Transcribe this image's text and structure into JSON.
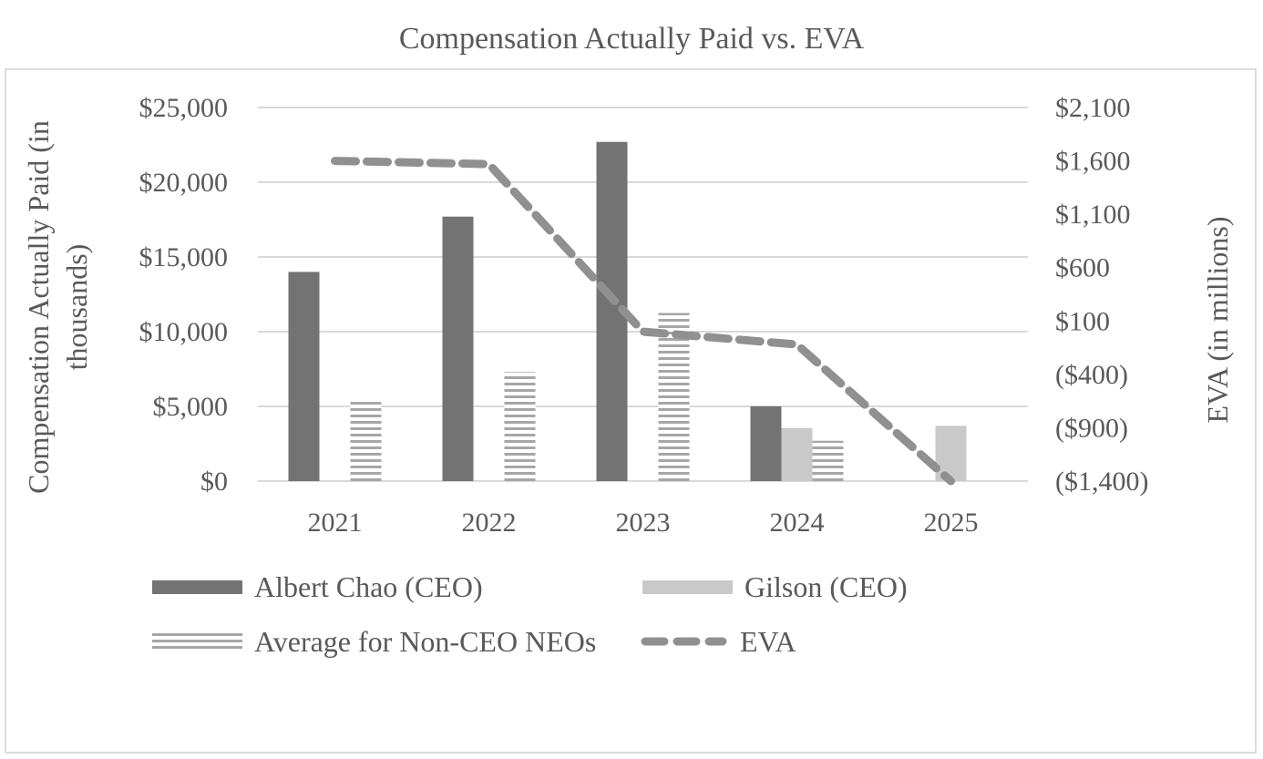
{
  "title": "Compensation Actually Paid vs. EVA",
  "chart_data": {
    "type": "bar",
    "subtype": "combo-bar-line-dual-axis",
    "categories": [
      "2021",
      "2022",
      "2023",
      "2024",
      "2025"
    ],
    "series": [
      {
        "name": "Albert Chao (CEO)",
        "type": "bar",
        "style": "solid-dark",
        "axis": "primary",
        "values": [
          14000,
          17700,
          22700,
          5000,
          null
        ]
      },
      {
        "name": "Gilson (CEO)",
        "type": "bar",
        "style": "solid-light",
        "axis": "primary",
        "values": [
          null,
          null,
          null,
          3550,
          3700
        ]
      },
      {
        "name": "Average for Non-CEO NEOs",
        "type": "bar",
        "style": "striped",
        "axis": "primary",
        "values": [
          5300,
          7300,
          11250,
          2700,
          null
        ]
      },
      {
        "name": "EVA",
        "type": "line",
        "style": "dashed",
        "axis": "secondary",
        "values": [
          1600,
          1570,
          0,
          -120,
          -1400
        ]
      }
    ],
    "left_axis": {
      "title": "Compensation Actually Paid (in thousands)",
      "title_lines": [
        "Compensation Actually Paid (in",
        "thousands)"
      ],
      "ticks": [
        "$25,000",
        "$20,000",
        "$15,000",
        "$10,000",
        "$5,000",
        "$0"
      ],
      "tick_values": [
        25000,
        20000,
        15000,
        10000,
        5000,
        0
      ],
      "min": 0,
      "max": 25000
    },
    "right_axis": {
      "title": "EVA (in millions)",
      "ticks": [
        "$2,100",
        "$1,600",
        "$1,100",
        "$600",
        "$100",
        "($400)",
        "($900)",
        "($1,400)"
      ],
      "tick_values": [
        2100,
        1600,
        1100,
        600,
        100,
        -400,
        -900,
        -1400
      ],
      "min": -1400,
      "max": 2100
    },
    "grid": "horizontal",
    "legend_position": "bottom"
  },
  "legend": {
    "items": [
      {
        "label": "Albert Chao (CEO)",
        "swatch": "solid-dark"
      },
      {
        "label": "Gilson (CEO)",
        "swatch": "solid-light"
      },
      {
        "label": "Average for Non-CEO NEOs",
        "swatch": "striped"
      },
      {
        "label": "EVA",
        "swatch": "dashed-line"
      }
    ]
  },
  "colors": {
    "bar_dark": "#737373",
    "bar_light": "#c9c9c9",
    "stripe": "#a6a6a6",
    "eva_line": "#909090",
    "gridline": "#d9d9d9",
    "text": "#595959",
    "chart_border": "#dcdcdc"
  }
}
